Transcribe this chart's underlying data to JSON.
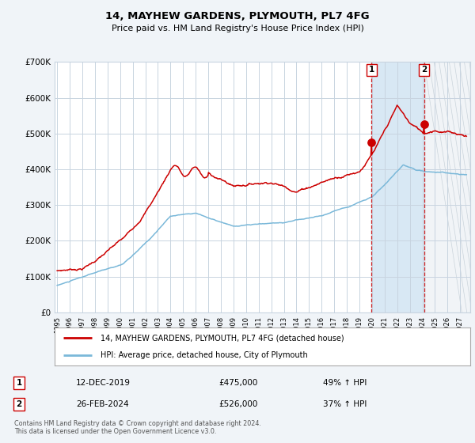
{
  "title": "14, MAYHEW GARDENS, PLYMOUTH, PL7 4FG",
  "subtitle": "Price paid vs. HM Land Registry's House Price Index (HPI)",
  "hpi_color": "#7ab8d9",
  "price_color": "#cc0000",
  "bg_color": "#f0f4f8",
  "plot_bg": "#ffffff",
  "grid_color": "#c8d4e0",
  "highlight_bg": "#d8e8f4",
  "hatch_color": "#c8d4e0",
  "point1_date": "12-DEC-2019",
  "point1_value": 475000,
  "point1_hpi_pct": "49%",
  "point2_date": "26-FEB-2024",
  "point2_value": 526000,
  "point2_hpi_pct": "37%",
  "legend_label1": "14, MAYHEW GARDENS, PLYMOUTH, PL7 4FG (detached house)",
  "legend_label2": "HPI: Average price, detached house, City of Plymouth",
  "footer": "Contains HM Land Registry data © Crown copyright and database right 2024.\nThis data is licensed under the Open Government Licence v3.0.",
  "ylim": [
    0,
    700000
  ],
  "yticks": [
    0,
    100000,
    200000,
    300000,
    400000,
    500000,
    600000,
    700000
  ],
  "ytick_labels": [
    "£0",
    "£100K",
    "£200K",
    "£300K",
    "£400K",
    "£500K",
    "£600K",
    "£700K"
  ],
  "t1": 2019.96,
  "t2": 2024.13,
  "xlim_left": 1994.8,
  "xlim_right": 2027.8
}
